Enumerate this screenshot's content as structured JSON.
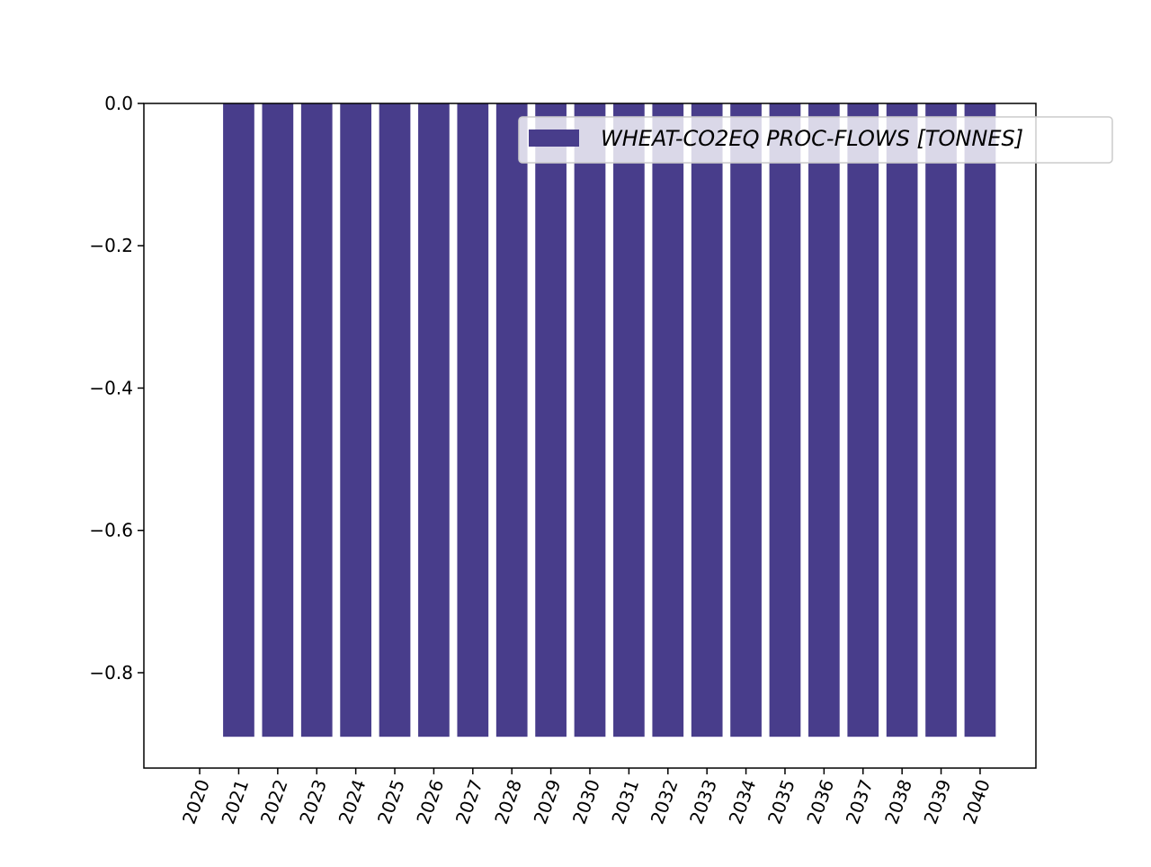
{
  "chart_data": {
    "type": "bar",
    "categories": [
      "2020",
      "2021",
      "2022",
      "2023",
      "2024",
      "2025",
      "2026",
      "2027",
      "2028",
      "2029",
      "2030",
      "2031",
      "2032",
      "2033",
      "2034",
      "2035",
      "2036",
      "2037",
      "2038",
      "2039",
      "2040"
    ],
    "series": [
      {
        "name": "WHEAT-CO2EQ PROC-FLOWS [TONNES]",
        "color": "#483d8b",
        "values": [
          0,
          -0.89,
          -0.89,
          -0.89,
          -0.89,
          -0.89,
          -0.89,
          -0.89,
          -0.89,
          -0.89,
          -0.89,
          -0.89,
          -0.89,
          -0.89,
          -0.89,
          -0.89,
          -0.89,
          -0.89,
          -0.89,
          -0.89,
          -0.89
        ]
      }
    ],
    "ylim": [
      -0.934,
      0
    ],
    "yticks": [
      {
        "value": 0,
        "label": "0.0"
      },
      {
        "value": -0.2,
        "label": "−0.2"
      },
      {
        "value": -0.4,
        "label": "−0.4"
      },
      {
        "value": -0.6,
        "label": "−0.6"
      },
      {
        "value": -0.8,
        "label": "−0.8"
      }
    ],
    "legend": "upper right"
  }
}
